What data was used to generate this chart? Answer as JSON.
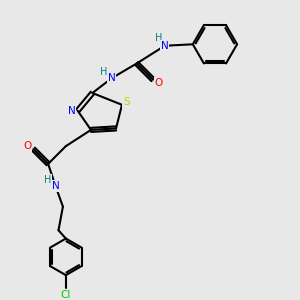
{
  "bg_color": "#e8e8e8",
  "bond_color": "#000000",
  "atom_colors": {
    "N": "#0000ff",
    "O": "#ff0000",
    "S": "#cccc00",
    "Cl": "#00cc00",
    "H": "#008080"
  },
  "figsize": [
    3.0,
    3.0
  ],
  "dpi": 100
}
